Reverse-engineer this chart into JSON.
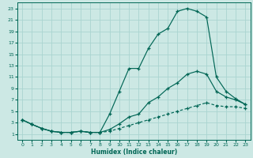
{
  "xlabel": "Humidex (Indice chaleur)",
  "bg_color": "#cce8e4",
  "grid_color": "#aad4d0",
  "line_color": "#006655",
  "xlim": [
    -0.5,
    23.5
  ],
  "ylim": [
    0,
    24
  ],
  "xticks": [
    0,
    1,
    2,
    3,
    4,
    5,
    6,
    7,
    8,
    9,
    10,
    11,
    12,
    13,
    14,
    15,
    16,
    17,
    18,
    19,
    20,
    21,
    22,
    23
  ],
  "yticks": [
    1,
    3,
    5,
    7,
    9,
    11,
    13,
    15,
    17,
    19,
    21,
    23
  ],
  "line1_x": [
    0,
    1,
    2,
    3,
    4,
    5,
    6,
    7,
    8,
    9,
    10,
    11,
    12,
    13,
    14,
    15,
    16,
    17,
    18,
    19,
    20,
    21,
    22,
    23
  ],
  "line1_y": [
    3.5,
    2.7,
    2.0,
    1.5,
    1.3,
    1.3,
    1.5,
    1.3,
    1.3,
    4.5,
    8.5,
    12.5,
    12.5,
    16,
    18.5,
    19.5,
    22.5,
    23,
    22.5,
    21.5,
    11,
    8.5,
    7.2,
    6.2
  ],
  "line2_x": [
    0,
    1,
    2,
    3,
    4,
    5,
    6,
    7,
    8,
    9,
    10,
    11,
    12,
    13,
    14,
    15,
    16,
    17,
    18,
    19,
    20,
    21,
    22,
    23
  ],
  "line2_y": [
    3.5,
    2.7,
    2.0,
    1.5,
    1.3,
    1.3,
    1.5,
    1.3,
    1.3,
    1.8,
    2.8,
    4.0,
    4.5,
    6.5,
    7.5,
    9.0,
    10.0,
    11.5,
    12.0,
    11.5,
    8.5,
    7.5,
    7.0,
    6.2
  ],
  "line3_x": [
    0,
    1,
    2,
    3,
    4,
    5,
    6,
    7,
    8,
    9,
    10,
    11,
    12,
    13,
    14,
    15,
    16,
    17,
    18,
    19,
    20,
    21,
    22,
    23
  ],
  "line3_y": [
    3.5,
    2.7,
    2.0,
    1.5,
    1.3,
    1.3,
    1.5,
    1.3,
    1.3,
    1.5,
    2.0,
    2.5,
    3.0,
    3.5,
    4.0,
    4.5,
    5.0,
    5.5,
    6.0,
    6.5,
    6.0,
    5.8,
    5.8,
    5.5
  ]
}
